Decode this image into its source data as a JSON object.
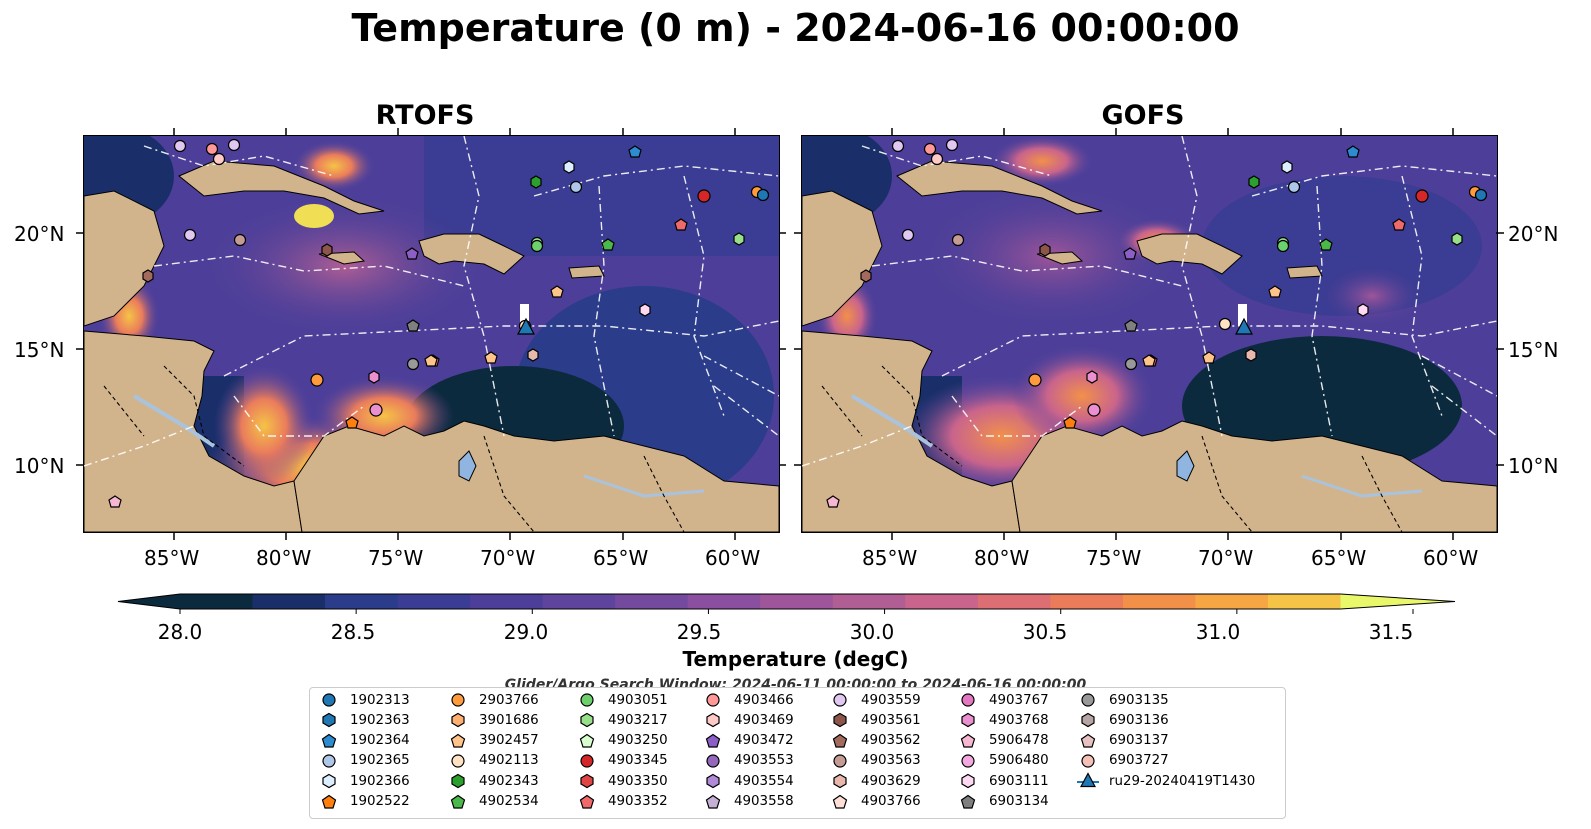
{
  "title": "Temperature (0 m) - 2024-06-16 00:00:00",
  "panels": [
    {
      "title": "RTOFS",
      "side": "left"
    },
    {
      "title": "GOFS",
      "side": "right"
    }
  ],
  "lat_labels": [
    "20°N",
    "15°N",
    "10°N"
  ],
  "lon_labels": [
    "85°W",
    "80°W",
    "75°W",
    "70°W",
    "65°W",
    "60°W"
  ],
  "colorbar": {
    "title": "Temperature (degC)",
    "ticks": [
      "28.0",
      "28.5",
      "29.0",
      "29.5",
      "30.0",
      "30.5",
      "31.0",
      "31.5"
    ],
    "colors": [
      "#0c2a3e",
      "#1a2f6a",
      "#2b3c8a",
      "#3b3c93",
      "#4d3f99",
      "#5e449c",
      "#744a9e",
      "#8a4f9e",
      "#9e5599",
      "#b05e94",
      "#c9648c",
      "#dd6e73",
      "#ea7c5c",
      "#f2904a",
      "#f6a643",
      "#f5c346",
      "#f0de55",
      "#e9f76b"
    ]
  },
  "search_window": "Glider/Argo Search Window: 2024-06-11 00:00:00 to 2024-06-16 00:00:00",
  "legend": [
    {
      "id": "1902313",
      "shape": "circle",
      "color": "#1f77b4"
    },
    {
      "id": "1902363",
      "shape": "hexagon",
      "color": "#1f77b4"
    },
    {
      "id": "1902364",
      "shape": "pentagon",
      "color": "#2d8bd0"
    },
    {
      "id": "1902365",
      "shape": "circle",
      "color": "#aec7e8"
    },
    {
      "id": "1902366",
      "shape": "hexagon",
      "color": "#ddeeff"
    },
    {
      "id": "1902522",
      "shape": "pentagon",
      "color": "#ff7f0e"
    },
    {
      "id": "2903766",
      "shape": "circle",
      "color": "#ff9b3d"
    },
    {
      "id": "3901686",
      "shape": "hexagon",
      "color": "#ffb070"
    },
    {
      "id": "3902457",
      "shape": "pentagon",
      "color": "#ffc48a"
    },
    {
      "id": "4902113",
      "shape": "circle",
      "color": "#ffe2c4"
    },
    {
      "id": "4902343",
      "shape": "hexagon",
      "color": "#2ca02c"
    },
    {
      "id": "4902534",
      "shape": "pentagon",
      "color": "#4cb84c"
    },
    {
      "id": "4903051",
      "shape": "circle",
      "color": "#6cd06c"
    },
    {
      "id": "4903217",
      "shape": "hexagon",
      "color": "#98df8a"
    },
    {
      "id": "4903250",
      "shape": "pentagon",
      "color": "#d8ffd0"
    },
    {
      "id": "4903345",
      "shape": "circle",
      "color": "#d62728"
    },
    {
      "id": "4903350",
      "shape": "hexagon",
      "color": "#e04545"
    },
    {
      "id": "4903352",
      "shape": "pentagon",
      "color": "#ef6b6b"
    },
    {
      "id": "4903466",
      "shape": "circle",
      "color": "#ff9896"
    },
    {
      "id": "4903469",
      "shape": "hexagon",
      "color": "#ffc9c8"
    },
    {
      "id": "4903472",
      "shape": "pentagon",
      "color": "#8c5fc6"
    },
    {
      "id": "4903553",
      "shape": "circle",
      "color": "#9467bd"
    },
    {
      "id": "4903554",
      "shape": "hexagon",
      "color": "#b08ad6"
    },
    {
      "id": "4903558",
      "shape": "pentagon",
      "color": "#c5b0d5"
    },
    {
      "id": "4903559",
      "shape": "circle",
      "color": "#e0c8f0"
    },
    {
      "id": "4903561",
      "shape": "hexagon",
      "color": "#8c564b"
    },
    {
      "id": "4903562",
      "shape": "pentagon",
      "color": "#a36b5e"
    },
    {
      "id": "4903563",
      "shape": "circle",
      "color": "#c49c94"
    },
    {
      "id": "4903629",
      "shape": "hexagon",
      "color": "#e8b8ac"
    },
    {
      "id": "4903766",
      "shape": "pentagon",
      "color": "#ffe0d8"
    },
    {
      "id": "4903767",
      "shape": "circle",
      "color": "#e377c2"
    },
    {
      "id": "4903768",
      "shape": "hexagon",
      "color": "#ea8fcf"
    },
    {
      "id": "5906478",
      "shape": "pentagon",
      "color": "#f7b6d2"
    },
    {
      "id": "5906480",
      "shape": "circle",
      "color": "#f5a8e0"
    },
    {
      "id": "6903111",
      "shape": "hexagon",
      "color": "#ffd8f2"
    },
    {
      "id": "6903134",
      "shape": "pentagon",
      "color": "#7f7f7f"
    },
    {
      "id": "6903135",
      "shape": "circle",
      "color": "#999999"
    },
    {
      "id": "6903136",
      "shape": "hexagon",
      "color": "#b5a5a5"
    },
    {
      "id": "6903137",
      "shape": "pentagon",
      "color": "#e6c2c2"
    },
    {
      "id": "6903727",
      "shape": "circle",
      "color": "#f5c0b8"
    },
    {
      "id": "ru29-20240419T1430",
      "shape": "triangle-line",
      "color": "#1f77b4"
    }
  ]
}
